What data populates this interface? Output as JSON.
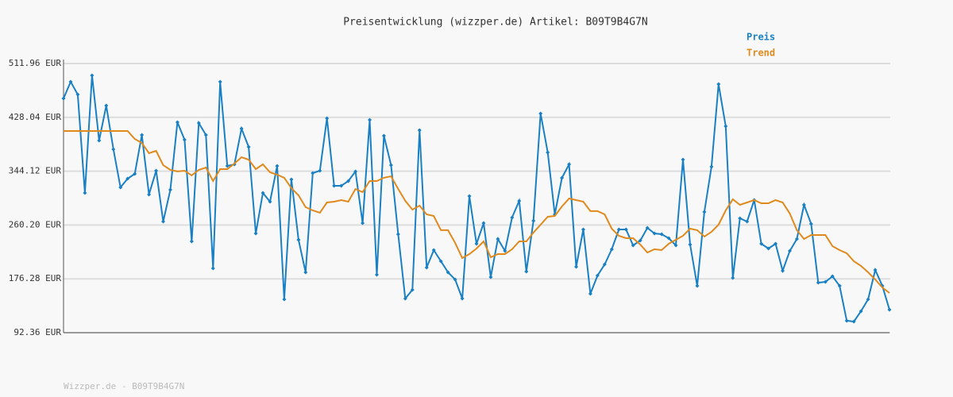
{
  "chart_data": {
    "type": "line",
    "title": "Preisentwicklung (wizzper.de) Artikel: B09T9B4G7N",
    "footer": "Wizzper.de - B09T9B4G7N",
    "legend": "top right",
    "grid": true,
    "ylim": [
      92.36,
      511.96
    ],
    "yticks": [
      {
        "value": 92.36,
        "label": "92.36 EUR"
      },
      {
        "value": 176.28,
        "label": "176.28 EUR"
      },
      {
        "value": 260.2,
        "label": "260.20 EUR"
      },
      {
        "value": 344.12,
        "label": "344.12 EUR"
      },
      {
        "value": 428.04,
        "label": "428.04 EUR"
      },
      {
        "value": 511.96,
        "label": "511.96 EUR"
      }
    ],
    "series": [
      {
        "name": "Preis",
        "color": "#1a80c4",
        "markers": true,
        "values": [
          457.5,
          483.5,
          463.7,
          310.2,
          493.4,
          391.9,
          446.4,
          378.3,
          318.9,
          332.5,
          339.9,
          400.6,
          307.8,
          344.9,
          265.7,
          315.2,
          420.4,
          393.2,
          234.7,
          419.2,
          400.6,
          192.6,
          483.5,
          352.3,
          354.8,
          410.5,
          382,
          247.1,
          310.2,
          296.6,
          352.3,
          144.4,
          331.3,
          237.2,
          186.5,
          341.2,
          344.9,
          426.6,
          321.4,
          321.4,
          328.8,
          343.7,
          263.2,
          424.1,
          182.7,
          399.4,
          353.6,
          245.9,
          145.6,
          159.2,
          408,
          193.9,
          221.1,
          203.8,
          186.5,
          175.3,
          145.6,
          305.3,
          231,
          263.2,
          179,
          238.4,
          219.9,
          271.9,
          297.9,
          187.7,
          266.9,
          434,
          373.4,
          276.8,
          333.8,
          354.8,
          195.1,
          253.3,
          153,
          181.5,
          198.8,
          222.4,
          253.3,
          253.3,
          228.5,
          236,
          255.8,
          247.1,
          245.9,
          239.7,
          228.5,
          362.2,
          229.8,
          165.4,
          280.5,
          351.1,
          479.8,
          414.2,
          177.8,
          270.6,
          265.7,
          299.1,
          231,
          223.6,
          231,
          188.9,
          219.9,
          238.4,
          291.7,
          262,
          170.4,
          171.6,
          180.3,
          165.4,
          111,
          109.7,
          125.8,
          144.4,
          190.2,
          165.4,
          128.3
        ]
      },
      {
        "name": "Trend",
        "color": "#e08a1e",
        "markers": false,
        "values": [
          406.8,
          406.8,
          406.8,
          406.8,
          406.8,
          406.8,
          406.8,
          406.8,
          406.8,
          406.8,
          394.4,
          388.2,
          372.1,
          375.8,
          353.6,
          346.1,
          343.7,
          344.9,
          337.5,
          346.1,
          349.8,
          328.8,
          347.4,
          347.4,
          356,
          365.9,
          362.2,
          347.4,
          354.8,
          342.4,
          338.7,
          333.8,
          317.7,
          306.5,
          288,
          283,
          279.3,
          295.4,
          296.6,
          299.1,
          296.6,
          316.4,
          311.5,
          328.8,
          328.8,
          333.8,
          336.2,
          316.4,
          297.9,
          284.2,
          290.4,
          276.8,
          274.3,
          252.1,
          252.1,
          232.3,
          208.7,
          214.9,
          223.6,
          234.7,
          210,
          214.9,
          214.9,
          222.4,
          234.7,
          234.7,
          248.4,
          260.7,
          273.1,
          274.3,
          289.2,
          301.6,
          299.1,
          296.6,
          281.8,
          281.8,
          276.8,
          254.5,
          243.4,
          239.7,
          239.7,
          229.8,
          217.4,
          222.4,
          221.1,
          231,
          237.2,
          243.4,
          254.5,
          252.1,
          242.2,
          249.6,
          260.7,
          283,
          300.3,
          291.7,
          295.4,
          299.1,
          294.1,
          294.1,
          299.1,
          295.4,
          278.1,
          252.1,
          238.4,
          244.6,
          244.6,
          244.6,
          227.3,
          221.1,
          216.2,
          203.8,
          196.4,
          186.5,
          175.3,
          162.9,
          154.3
        ]
      }
    ]
  }
}
